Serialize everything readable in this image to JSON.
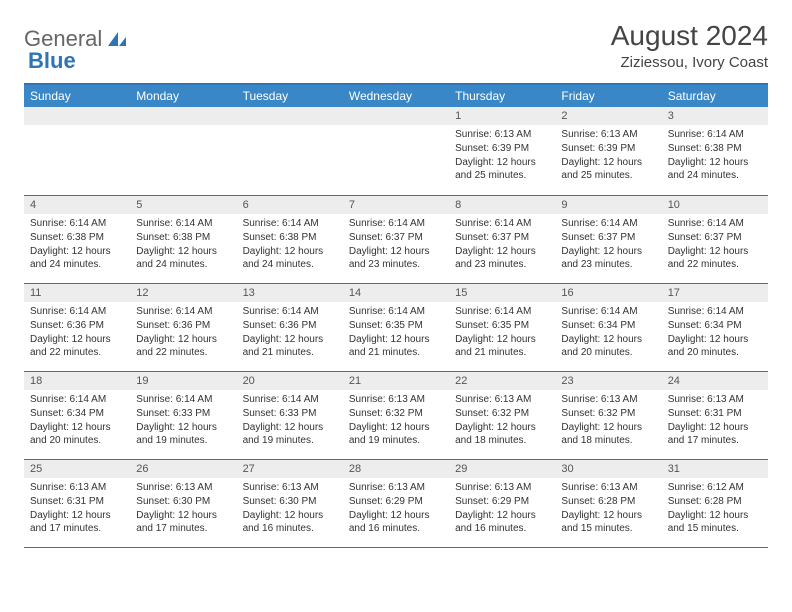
{
  "logo": {
    "text1": "General",
    "text2": "Blue"
  },
  "title": "August 2024",
  "location": "Ziziessou, Ivory Coast",
  "colors": {
    "header_bg": "#3a87c7",
    "header_text": "#ffffff",
    "border": "#2e75b6",
    "daynum_bg": "#ededed",
    "daynum_text": "#555555",
    "body_text": "#333333",
    "logo_gray": "#666666",
    "logo_blue": "#2e75b6"
  },
  "day_headers": [
    "Sunday",
    "Monday",
    "Tuesday",
    "Wednesday",
    "Thursday",
    "Friday",
    "Saturday"
  ],
  "weeks": [
    [
      null,
      null,
      null,
      null,
      {
        "n": "1",
        "sr": "6:13 AM",
        "ss": "6:39 PM",
        "dl": "12 hours and 25 minutes."
      },
      {
        "n": "2",
        "sr": "6:13 AM",
        "ss": "6:39 PM",
        "dl": "12 hours and 25 minutes."
      },
      {
        "n": "3",
        "sr": "6:14 AM",
        "ss": "6:38 PM",
        "dl": "12 hours and 24 minutes."
      }
    ],
    [
      {
        "n": "4",
        "sr": "6:14 AM",
        "ss": "6:38 PM",
        "dl": "12 hours and 24 minutes."
      },
      {
        "n": "5",
        "sr": "6:14 AM",
        "ss": "6:38 PM",
        "dl": "12 hours and 24 minutes."
      },
      {
        "n": "6",
        "sr": "6:14 AM",
        "ss": "6:38 PM",
        "dl": "12 hours and 24 minutes."
      },
      {
        "n": "7",
        "sr": "6:14 AM",
        "ss": "6:37 PM",
        "dl": "12 hours and 23 minutes."
      },
      {
        "n": "8",
        "sr": "6:14 AM",
        "ss": "6:37 PM",
        "dl": "12 hours and 23 minutes."
      },
      {
        "n": "9",
        "sr": "6:14 AM",
        "ss": "6:37 PM",
        "dl": "12 hours and 23 minutes."
      },
      {
        "n": "10",
        "sr": "6:14 AM",
        "ss": "6:37 PM",
        "dl": "12 hours and 22 minutes."
      }
    ],
    [
      {
        "n": "11",
        "sr": "6:14 AM",
        "ss": "6:36 PM",
        "dl": "12 hours and 22 minutes."
      },
      {
        "n": "12",
        "sr": "6:14 AM",
        "ss": "6:36 PM",
        "dl": "12 hours and 22 minutes."
      },
      {
        "n": "13",
        "sr": "6:14 AM",
        "ss": "6:36 PM",
        "dl": "12 hours and 21 minutes."
      },
      {
        "n": "14",
        "sr": "6:14 AM",
        "ss": "6:35 PM",
        "dl": "12 hours and 21 minutes."
      },
      {
        "n": "15",
        "sr": "6:14 AM",
        "ss": "6:35 PM",
        "dl": "12 hours and 21 minutes."
      },
      {
        "n": "16",
        "sr": "6:14 AM",
        "ss": "6:34 PM",
        "dl": "12 hours and 20 minutes."
      },
      {
        "n": "17",
        "sr": "6:14 AM",
        "ss": "6:34 PM",
        "dl": "12 hours and 20 minutes."
      }
    ],
    [
      {
        "n": "18",
        "sr": "6:14 AM",
        "ss": "6:34 PM",
        "dl": "12 hours and 20 minutes."
      },
      {
        "n": "19",
        "sr": "6:14 AM",
        "ss": "6:33 PM",
        "dl": "12 hours and 19 minutes."
      },
      {
        "n": "20",
        "sr": "6:14 AM",
        "ss": "6:33 PM",
        "dl": "12 hours and 19 minutes."
      },
      {
        "n": "21",
        "sr": "6:13 AM",
        "ss": "6:32 PM",
        "dl": "12 hours and 19 minutes."
      },
      {
        "n": "22",
        "sr": "6:13 AM",
        "ss": "6:32 PM",
        "dl": "12 hours and 18 minutes."
      },
      {
        "n": "23",
        "sr": "6:13 AM",
        "ss": "6:32 PM",
        "dl": "12 hours and 18 minutes."
      },
      {
        "n": "24",
        "sr": "6:13 AM",
        "ss": "6:31 PM",
        "dl": "12 hours and 17 minutes."
      }
    ],
    [
      {
        "n": "25",
        "sr": "6:13 AM",
        "ss": "6:31 PM",
        "dl": "12 hours and 17 minutes."
      },
      {
        "n": "26",
        "sr": "6:13 AM",
        "ss": "6:30 PM",
        "dl": "12 hours and 17 minutes."
      },
      {
        "n": "27",
        "sr": "6:13 AM",
        "ss": "6:30 PM",
        "dl": "12 hours and 16 minutes."
      },
      {
        "n": "28",
        "sr": "6:13 AM",
        "ss": "6:29 PM",
        "dl": "12 hours and 16 minutes."
      },
      {
        "n": "29",
        "sr": "6:13 AM",
        "ss": "6:29 PM",
        "dl": "12 hours and 16 minutes."
      },
      {
        "n": "30",
        "sr": "6:13 AM",
        "ss": "6:28 PM",
        "dl": "12 hours and 15 minutes."
      },
      {
        "n": "31",
        "sr": "6:12 AM",
        "ss": "6:28 PM",
        "dl": "12 hours and 15 minutes."
      }
    ]
  ],
  "labels": {
    "sunrise": "Sunrise:",
    "sunset": "Sunset:",
    "daylight": "Daylight:"
  }
}
